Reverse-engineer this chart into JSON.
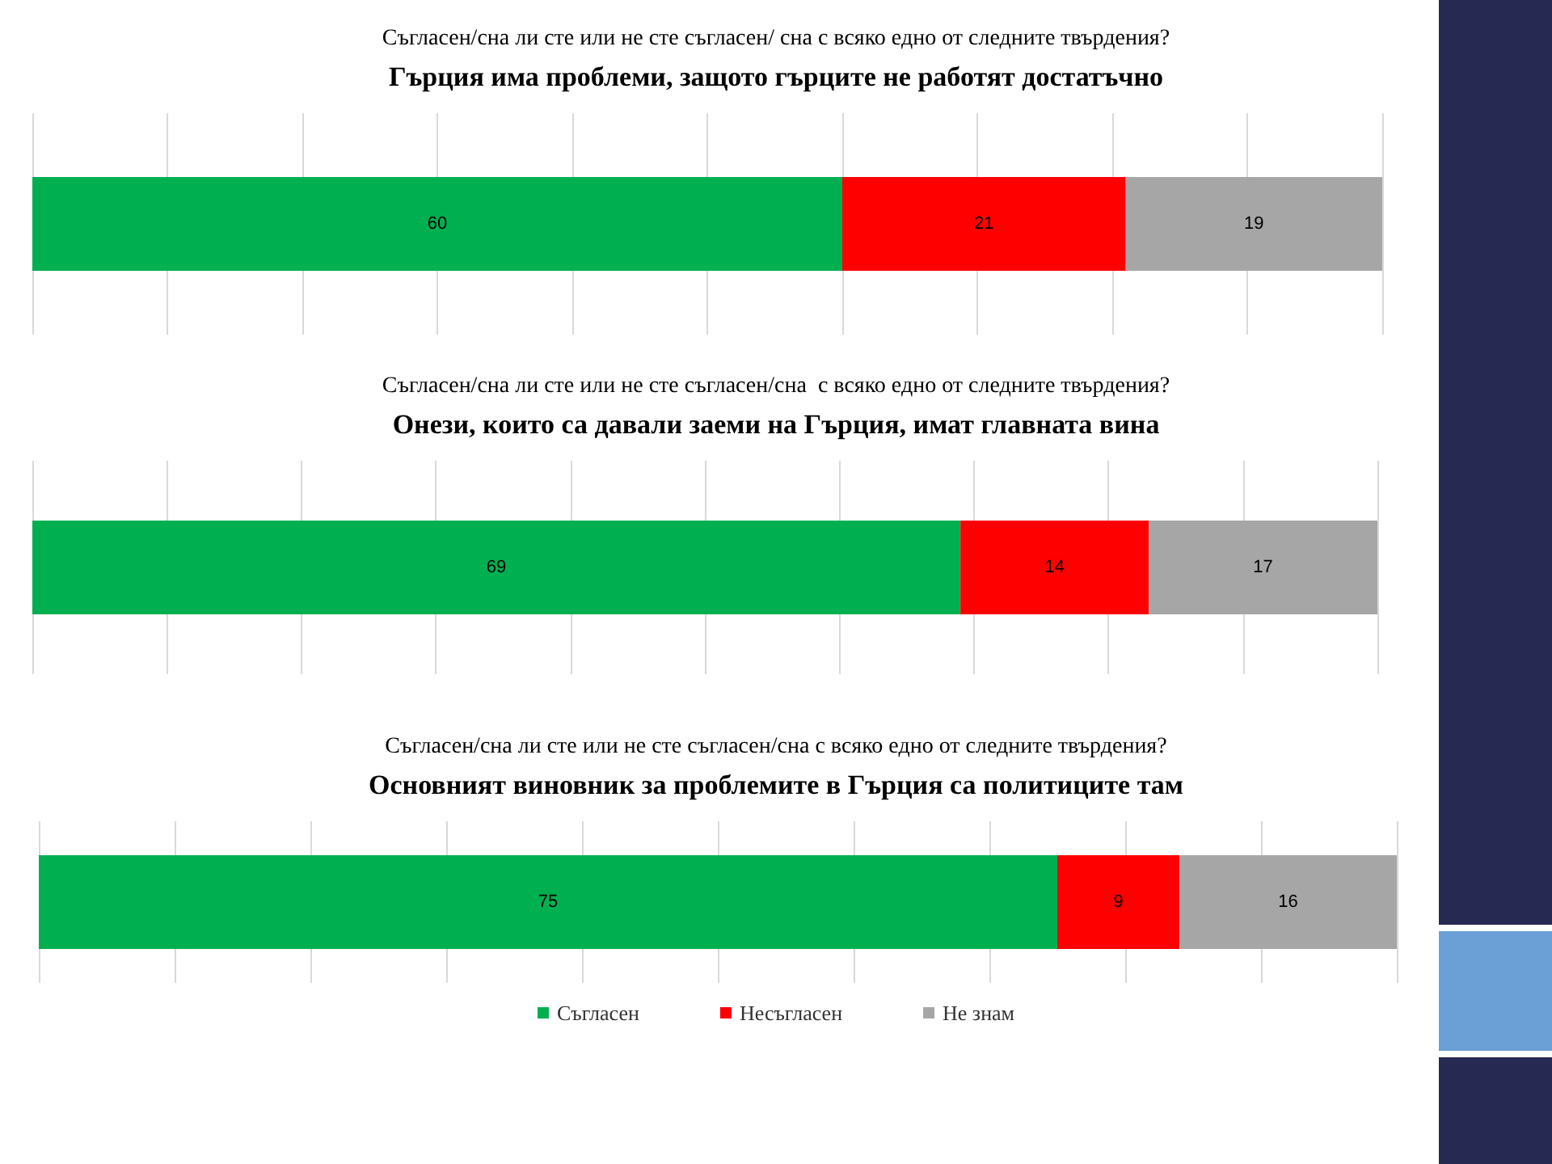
{
  "chart_data": [
    {
      "type": "bar",
      "orientation": "horizontal",
      "stacked": true,
      "subtitle": "Съгласен/сна ли сте или не сте съгласен/ сна с всяко едно от следните твърдения?",
      "title": "Гърция има проблеми, защото гърците не работят достатъчно",
      "categories": [
        null
      ],
      "series": [
        {
          "color": "#00b050",
          "values": [
            60
          ]
        },
        {
          "color": "#ff0000",
          "values": [
            21
          ]
        },
        {
          "color": "#a6a6a6",
          "values": [
            19
          ]
        }
      ],
      "xlim": [
        0,
        100
      ],
      "xticks": [
        {
          "value": 0,
          "label": null
        },
        {
          "value": 10,
          "label": null
        },
        {
          "value": 20,
          "label": null
        },
        {
          "value": 30,
          "label": null
        },
        {
          "value": 40,
          "label": null
        },
        {
          "value": 50,
          "label": null
        },
        {
          "value": 60,
          "label": null
        },
        {
          "value": 70,
          "label": null
        },
        {
          "value": 80,
          "label": null
        },
        {
          "value": 90,
          "label": null
        },
        {
          "value": 100,
          "label": null
        }
      ],
      "grid": "x",
      "data_labels": true,
      "legend": false
    },
    {
      "type": "bar",
      "orientation": "horizontal",
      "stacked": true,
      "subtitle": "Съгласен/сна ли сте или не сте съгласен/сна  с всяко едно от следните твърдения?",
      "title": "Онези, които са давали заеми на Гърция, имат главната вина",
      "categories": [
        null
      ],
      "series": [
        {
          "color": "#00b050",
          "values": [
            69
          ]
        },
        {
          "color": "#ff0000",
          "values": [
            14
          ]
        },
        {
          "color": "#a6a6a6",
          "values": [
            17
          ]
        }
      ],
      "xlim": [
        0,
        100
      ],
      "xticks": [
        {
          "value": 0,
          "label": null
        },
        {
          "value": 10,
          "label": null
        },
        {
          "value": 20,
          "label": null
        },
        {
          "value": 30,
          "label": null
        },
        {
          "value": 40,
          "label": null
        },
        {
          "value": 50,
          "label": null
        },
        {
          "value": 60,
          "label": null
        },
        {
          "value": 70,
          "label": null
        },
        {
          "value": 80,
          "label": null
        },
        {
          "value": 90,
          "label": null
        },
        {
          "value": 100,
          "label": null
        }
      ],
      "grid": "x",
      "data_labels": true,
      "legend": false
    },
    {
      "type": "bar",
      "orientation": "horizontal",
      "stacked": true,
      "subtitle": "Съгласен/сна ли сте или не сте съгласен/сна с всяко едно от следните твърдения?",
      "title": "Основният виновник за проблемите в Гърция са политиците там",
      "categories": [
        null
      ],
      "series": [
        {
          "name": "Съгласен",
          "color": "#00b050",
          "values": [
            75
          ]
        },
        {
          "name": "Несъгласен",
          "color": "#ff0000",
          "values": [
            9
          ]
        },
        {
          "name": "Не знам",
          "color": "#a6a6a6",
          "values": [
            16
          ]
        }
      ],
      "xlim": [
        0,
        100
      ],
      "xticks": [
        {
          "value": 0,
          "label": null
        },
        {
          "value": 10,
          "label": null
        },
        {
          "value": 20,
          "label": null
        },
        {
          "value": 30,
          "label": null
        },
        {
          "value": 40,
          "label": null
        },
        {
          "value": 50,
          "label": null
        },
        {
          "value": 60,
          "label": null
        },
        {
          "value": 70,
          "label": null
        },
        {
          "value": 80,
          "label": null
        },
        {
          "value": 90,
          "label": null
        },
        {
          "value": 100,
          "label": null
        }
      ],
      "grid": "x",
      "data_labels": true,
      "legend": "bottom"
    }
  ]
}
